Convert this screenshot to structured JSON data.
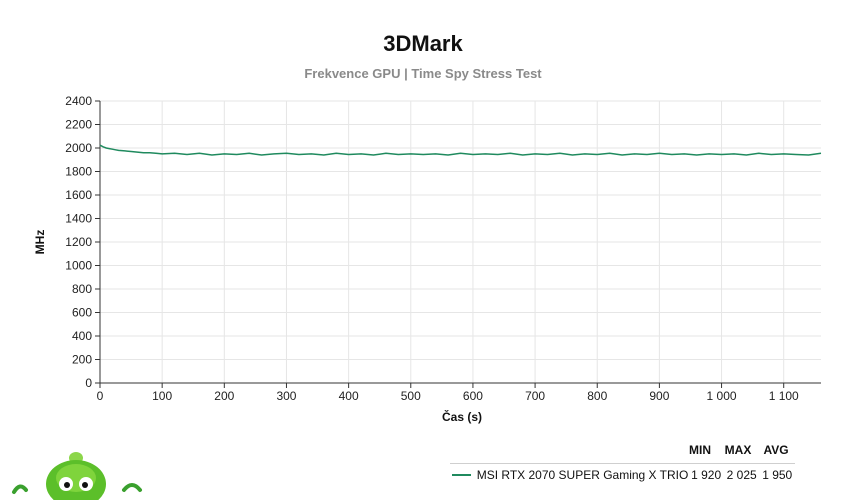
{
  "colors": {
    "series": "#1f8a5e",
    "grid": "#e6e6e6",
    "axis": "#333333"
  },
  "chart_data": {
    "type": "line",
    "title": "3DMark",
    "subtitle": "Frekvence GPU | Time Spy Stress Test",
    "xlabel": "Čas (s)",
    "ylabel": "MHz",
    "xlim": [
      0,
      1160
    ],
    "ylim": [
      0,
      2400
    ],
    "x_ticks": [
      0,
      100,
      200,
      300,
      400,
      500,
      600,
      700,
      800,
      900,
      1000,
      1100
    ],
    "x_tick_labels": [
      "0",
      "100",
      "200",
      "300",
      "400",
      "500",
      "600",
      "700",
      "800",
      "900",
      "1 000",
      "1 100"
    ],
    "y_ticks": [
      0,
      200,
      400,
      600,
      800,
      1000,
      1200,
      1400,
      1600,
      1800,
      2000,
      2200,
      2400
    ],
    "y_tick_labels": [
      "0",
      "200",
      "400",
      "600",
      "800",
      "1000",
      "1200",
      "1400",
      "1600",
      "1800",
      "2000",
      "2200",
      "2400"
    ],
    "grid": true,
    "legend_position": "bottom-right",
    "series": [
      {
        "name": "MSI RTX 2070 SUPER Gaming X TRIO",
        "x": [
          0,
          5,
          10,
          15,
          20,
          25,
          30,
          40,
          50,
          60,
          70,
          80,
          90,
          100,
          120,
          140,
          160,
          180,
          200,
          220,
          240,
          260,
          280,
          300,
          320,
          340,
          360,
          380,
          400,
          420,
          440,
          460,
          480,
          500,
          520,
          540,
          560,
          580,
          600,
          620,
          640,
          660,
          680,
          700,
          720,
          740,
          760,
          780,
          800,
          820,
          840,
          860,
          880,
          900,
          920,
          940,
          960,
          980,
          1000,
          1020,
          1040,
          1060,
          1080,
          1100,
          1120,
          1140,
          1160
        ],
        "y": [
          2025,
          2010,
          2000,
          1995,
          1990,
          1985,
          1980,
          1975,
          1970,
          1965,
          1960,
          1960,
          1955,
          1950,
          1955,
          1945,
          1955,
          1940,
          1950,
          1945,
          1955,
          1940,
          1950,
          1955,
          1945,
          1950,
          1940,
          1955,
          1945,
          1950,
          1940,
          1955,
          1945,
          1950,
          1945,
          1950,
          1940,
          1955,
          1945,
          1950,
          1945,
          1955,
          1940,
          1950,
          1945,
          1955,
          1940,
          1950,
          1945,
          1955,
          1940,
          1950,
          1945,
          1955,
          1945,
          1950,
          1940,
          1950,
          1945,
          1950,
          1940,
          1955,
          1945,
          1950,
          1945,
          1940,
          1955
        ]
      }
    ]
  },
  "legend": {
    "headers": {
      "min": "MIN",
      "max": "MAX",
      "avg": "AVG"
    },
    "rows": [
      {
        "name": "MSI RTX 2070 SUPER Gaming X TRIO",
        "min": "1 920",
        "max": "2 025",
        "avg": "1 950"
      }
    ]
  },
  "mascot_icon": "green-alien-mascot-icon"
}
